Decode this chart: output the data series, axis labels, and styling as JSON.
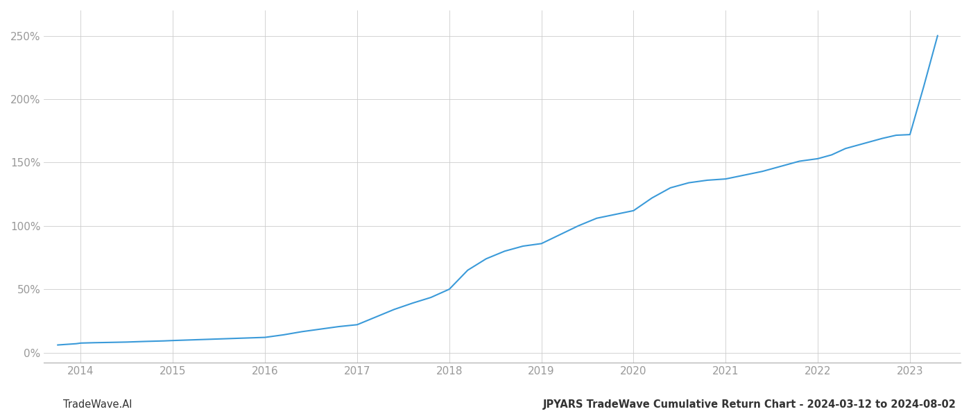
{
  "title": "JPYARS TradeWave Cumulative Return Chart - 2024-03-12 to 2024-08-02",
  "watermark": "TradeWave.AI",
  "line_color": "#3a9ad9",
  "background_color": "#ffffff",
  "grid_color": "#cccccc",
  "x_years": [
    2014,
    2015,
    2016,
    2017,
    2018,
    2019,
    2020,
    2021,
    2022,
    2023
  ],
  "x_values": [
    2013.75,
    2013.85,
    2013.95,
    2014.0,
    2014.15,
    2014.3,
    2014.5,
    2014.7,
    2014.9,
    2015.0,
    2015.2,
    2015.4,
    2015.6,
    2015.8,
    2016.0,
    2016.2,
    2016.4,
    2016.6,
    2016.8,
    2017.0,
    2017.2,
    2017.4,
    2017.6,
    2017.8,
    2018.0,
    2018.2,
    2018.4,
    2018.6,
    2018.8,
    2019.0,
    2019.2,
    2019.4,
    2019.6,
    2019.8,
    2020.0,
    2020.2,
    2020.4,
    2020.6,
    2020.8,
    2021.0,
    2021.2,
    2021.4,
    2021.6,
    2021.8,
    2022.0,
    2022.15,
    2022.3,
    2022.5,
    2022.7,
    2022.85,
    2023.0,
    2023.15,
    2023.3
  ],
  "y_values": [
    6,
    6.5,
    7,
    7.5,
    7.8,
    8.0,
    8.3,
    8.8,
    9.2,
    9.5,
    10.0,
    10.5,
    11.0,
    11.5,
    12.0,
    14.0,
    16.5,
    18.5,
    20.5,
    22.0,
    28.0,
    34.0,
    39.0,
    43.5,
    50.0,
    65.0,
    74.0,
    80.0,
    84.0,
    86.0,
    93.0,
    100.0,
    106.0,
    109.0,
    112.0,
    122.0,
    130.0,
    134.0,
    136.0,
    137.0,
    140.0,
    143.0,
    147.0,
    151.0,
    153.0,
    156.0,
    161.0,
    165.0,
    169.0,
    171.5,
    172.0,
    210.0,
    250.0
  ],
  "ylim": [
    -8,
    270
  ],
  "xlim": [
    2013.6,
    2023.55
  ],
  "yticks": [
    0,
    50,
    100,
    150,
    200,
    250
  ],
  "ytick_labels": [
    "0%",
    "50%",
    "100%",
    "150%",
    "200%",
    "250%"
  ],
  "title_fontsize": 10.5,
  "watermark_fontsize": 10.5,
  "tick_fontsize": 11,
  "tick_color": "#999999",
  "text_color": "#333333"
}
